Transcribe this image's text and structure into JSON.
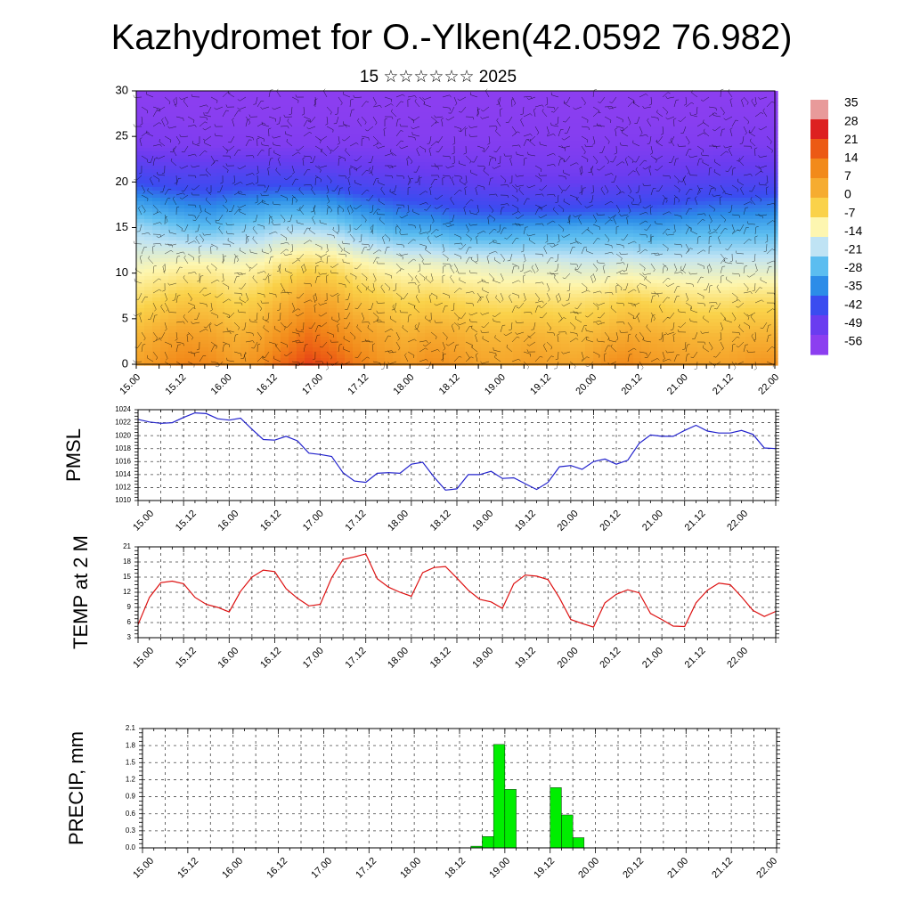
{
  "title": "Kazhydromet for O.-Ylken(42.0592 76.982)",
  "subtitle": "15 ☆☆☆☆☆☆ 2025",
  "time_ticks": [
    "15.00",
    "15.12",
    "16.00",
    "16.12",
    "17.00",
    "17.12",
    "18.00",
    "18.12",
    "19.00",
    "19.12",
    "20.00",
    "20.12",
    "21.00",
    "21.12",
    "22.00"
  ],
  "chart_data": [
    {
      "type": "heatmap",
      "name": "cross-section",
      "xlim": [
        0,
        168
      ],
      "ylim": [
        0,
        30
      ],
      "y_ticks": [
        0,
        5,
        10,
        15,
        20,
        25,
        30
      ],
      "colorbar_ticks": [
        "35",
        "28",
        "21",
        "14",
        "7",
        "0",
        "-7",
        "-14",
        "-21",
        "-28",
        "-35",
        "-42",
        "-49",
        "-56"
      ],
      "colors": [
        "#e89a9a",
        "#dd2020",
        "#ec5a14",
        "#f28a1a",
        "#f6ac30",
        "#fad24a",
        "#fdf6b0",
        "#bfe3f4",
        "#5bbdf0",
        "#2c8ce8",
        "#3a4cf0",
        "#6a3cf0",
        "#8c3ef0"
      ],
      "level_rows": [
        {
          "altitude": 0,
          "values": [
            9,
            12,
            15,
            14,
            10,
            13,
            19,
            24,
            21,
            16,
            12,
            10,
            13,
            11,
            9,
            8,
            10,
            9,
            8,
            12,
            14,
            11,
            10,
            9,
            9,
            11,
            12
          ]
        },
        {
          "altitude": 3,
          "values": [
            5,
            8,
            10,
            9,
            6,
            8,
            13,
            18,
            15,
            11,
            8,
            6,
            8,
            7,
            5,
            5,
            6,
            5,
            4,
            6,
            8,
            7,
            6,
            5,
            5,
            6,
            6
          ]
        },
        {
          "altitude": 7,
          "values": [
            -2,
            0,
            2,
            1,
            -1,
            1,
            5,
            9,
            7,
            3,
            1,
            -1,
            0,
            -1,
            -2,
            -3,
            -2,
            -3,
            -3,
            -2,
            0,
            -1,
            -2,
            -3,
            -3,
            -2,
            -2
          ]
        },
        {
          "altitude": 11,
          "values": [
            -9,
            -8,
            -7,
            -7,
            -8,
            -7,
            -4,
            -2,
            -3,
            -6,
            -8,
            -9,
            -9,
            -10,
            -10,
            -11,
            -11,
            -11,
            -12,
            -12,
            -11,
            -12,
            -12,
            -12,
            -12,
            -12,
            -12
          ]
        },
        {
          "altitude": 15,
          "values": [
            -16,
            -18,
            -20,
            -21,
            -19,
            -18,
            -16,
            -16,
            -17,
            -20,
            -22,
            -24,
            -24,
            -26,
            -26,
            -26,
            -25,
            -25,
            -24,
            -24,
            -24,
            -25,
            -24,
            -23,
            -23,
            -23,
            -23
          ]
        },
        {
          "altitude": 18,
          "values": [
            -26,
            -28,
            -30,
            -31,
            -29,
            -28,
            -27,
            -27,
            -28,
            -31,
            -33,
            -35,
            -36,
            -38,
            -39,
            -40,
            -40,
            -40,
            -40,
            -39,
            -38,
            -37,
            -36,
            -34,
            -33,
            -33,
            -32
          ]
        },
        {
          "altitude": 21,
          "values": [
            -40,
            -42,
            -43,
            -43,
            -42,
            -42,
            -42,
            -43,
            -44,
            -46,
            -47,
            -48,
            -49,
            -50,
            -51,
            -52,
            -52,
            -52,
            -52,
            -51,
            -50,
            -49,
            -48,
            -47,
            -46,
            -46,
            -46
          ]
        },
        {
          "altitude": 24,
          "values": [
            -54,
            -55,
            -55,
            -56,
            -56,
            -56,
            -56,
            -56,
            -56,
            -56,
            -56,
            -57,
            -57,
            -57,
            -57,
            -57,
            -57,
            -57,
            -57,
            -57,
            -56,
            -56,
            -56,
            -56,
            -55,
            -55,
            -55
          ]
        },
        {
          "altitude": 27,
          "values": [
            -58,
            -58,
            -59,
            -59,
            -59,
            -59,
            -59,
            -59,
            -59,
            -59,
            -59,
            -59,
            -59,
            -59,
            -59,
            -59,
            -59,
            -59,
            -59,
            -59,
            -59,
            -59,
            -59,
            -59,
            -58,
            -58,
            -58
          ]
        },
        {
          "altitude": 30,
          "values": [
            -60,
            -60,
            -60,
            -60,
            -60,
            -60,
            -60,
            -60,
            -60,
            -60,
            -60,
            -60,
            -60,
            -60,
            -60,
            -60,
            -60,
            -60,
            -60,
            -60,
            -60,
            -60,
            -60,
            -60,
            -60,
            -60,
            -60
          ]
        }
      ]
    },
    {
      "type": "line",
      "name": "pmsl",
      "ylabel": "PMSL",
      "ylim": [
        1010,
        1024
      ],
      "y_ticks": [
        1010,
        1012,
        1014,
        1016,
        1018,
        1020,
        1022,
        1024
      ],
      "color": "#2222cc",
      "x": [
        0,
        3,
        6,
        9,
        12,
        15,
        18,
        21,
        24,
        27,
        30,
        33,
        36,
        39,
        42,
        45,
        48,
        51,
        54,
        57,
        60,
        63,
        66,
        69,
        72,
        75,
        78,
        81,
        84,
        87,
        90,
        93,
        96,
        99,
        102,
        105,
        108,
        111,
        114,
        117,
        120,
        123,
        126,
        129,
        132,
        135,
        138,
        141,
        144,
        147,
        150,
        153,
        156,
        159,
        162,
        165,
        168
      ],
      "y": [
        1022.5,
        1022.1,
        1021.9,
        1022.0,
        1022.8,
        1023.5,
        1023.4,
        1022.6,
        1022.4,
        1022.7,
        1021.0,
        1019.4,
        1019.3,
        1019.9,
        1019.2,
        1017.3,
        1017.1,
        1016.8,
        1014.3,
        1013.0,
        1012.8,
        1014.2,
        1014.3,
        1014.2,
        1015.6,
        1015.9,
        1013.6,
        1011.6,
        1011.8,
        1014.0,
        1014.0,
        1014.5,
        1013.4,
        1013.5,
        1012.6,
        1011.7,
        1012.8,
        1015.2,
        1015.4,
        1014.8,
        1016.0,
        1016.4,
        1015.6,
        1016.2,
        1018.8,
        1020.1,
        1019.9,
        1019.9,
        1020.8,
        1021.6,
        1020.7,
        1020.4,
        1020.4,
        1020.8,
        1020.2,
        1018.1,
        1018.0
      ]
    },
    {
      "type": "line",
      "name": "temp",
      "ylabel": "TEMP at 2 M",
      "ylim": [
        3,
        21
      ],
      "y_ticks": [
        3,
        6,
        9,
        12,
        15,
        18,
        21
      ],
      "color": "#dd1111",
      "x": [
        0,
        3,
        6,
        9,
        12,
        15,
        18,
        21,
        24,
        27,
        30,
        33,
        36,
        39,
        42,
        45,
        48,
        51,
        54,
        57,
        60,
        63,
        66,
        69,
        72,
        75,
        78,
        81,
        84,
        87,
        90,
        93,
        96,
        99,
        102,
        105,
        108,
        111,
        114,
        117,
        120,
        123,
        126,
        129,
        132,
        135,
        138,
        141,
        144,
        147,
        150,
        153,
        156,
        159,
        162,
        165,
        168
      ],
      "y": [
        5.6,
        11.0,
        13.9,
        14.2,
        13.7,
        11.0,
        9.6,
        9.0,
        8.1,
        12.2,
        15.0,
        16.4,
        16.1,
        12.7,
        10.8,
        9.3,
        9.6,
        14.9,
        18.5,
        19.0,
        19.6,
        14.7,
        13.0,
        12.0,
        11.2,
        15.9,
        16.9,
        17.1,
        14.8,
        12.4,
        10.6,
        10.1,
        8.8,
        13.7,
        15.4,
        15.2,
        14.5,
        10.9,
        6.6,
        5.8,
        5.1,
        9.9,
        11.6,
        12.5,
        11.9,
        7.8,
        6.6,
        5.3,
        5.2,
        9.9,
        12.4,
        13.8,
        13.5,
        11.1,
        8.4,
        7.2,
        8.2
      ]
    },
    {
      "type": "bar",
      "name": "precip",
      "ylabel": "PRECIP, mm",
      "ylim": [
        0,
        2.1
      ],
      "y_ticks": [
        "0.0",
        "0.3",
        "0.6",
        "0.9",
        "1.2",
        "1.5",
        "1.8",
        "2.1"
      ],
      "color": "#00ee00",
      "x_start": [
        87,
        90,
        93,
        96,
        108,
        111,
        114
      ],
      "values": [
        0.03,
        0.2,
        1.82,
        1.03,
        1.06,
        0.58,
        0.18
      ]
    }
  ]
}
